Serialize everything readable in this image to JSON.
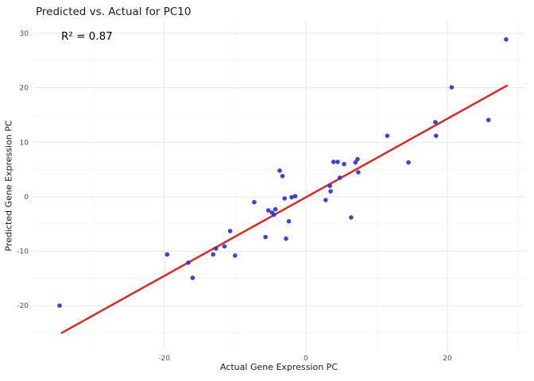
{
  "chart": {
    "title": "Predicted vs. Actual for PC10",
    "annotation": "R² = 0.87",
    "xlabel": "Actual Gene Expression PC",
    "ylabel": "Predicted Gene Expression PC"
  },
  "chart_data": {
    "type": "scatter",
    "title": "Predicted vs. Actual for PC10",
    "annotation": "R² = 0.87",
    "xlabel": "Actual Gene Expression PC",
    "ylabel": "Predicted Gene Expression PC",
    "x_ticks": [
      -20,
      0,
      20
    ],
    "y_ticks": [
      -20,
      -10,
      0,
      10,
      20,
      30
    ],
    "x_minor_ticks": [
      -30,
      -10,
      10,
      30
    ],
    "y_minor_ticks": [
      -25,
      -15,
      -5,
      5,
      15,
      25
    ],
    "xlim": [
      -38.5,
      31
    ],
    "ylim": [
      -28.3,
      32.2
    ],
    "grid": true,
    "legend": "none",
    "point_color": "#3030dd",
    "line_color": "#ec1c1c",
    "points": [
      [
        -34.8,
        -20.0
      ],
      [
        -19.6,
        -10.6
      ],
      [
        -16.6,
        -12.1
      ],
      [
        -16.0,
        -14.9
      ],
      [
        -13.1,
        -10.6
      ],
      [
        -12.7,
        -9.5
      ],
      [
        -11.5,
        -9.1
      ],
      [
        -10.7,
        -6.3
      ],
      [
        -10.0,
        -10.8
      ],
      [
        -7.3,
        -1.0
      ],
      [
        -5.7,
        -7.4
      ],
      [
        -5.3,
        -2.5
      ],
      [
        -4.8,
        -2.9
      ],
      [
        -4.5,
        -3.3
      ],
      [
        -4.3,
        -2.3
      ],
      [
        -3.7,
        4.8
      ],
      [
        -3.3,
        3.8
      ],
      [
        -3.0,
        -0.3
      ],
      [
        -2.8,
        -7.7
      ],
      [
        -2.4,
        -4.5
      ],
      [
        -2.0,
        -0.1
      ],
      [
        -1.5,
        0.1
      ],
      [
        2.8,
        -0.6
      ],
      [
        3.4,
        2.0
      ],
      [
        3.5,
        1.0
      ],
      [
        3.9,
        6.4
      ],
      [
        4.5,
        6.4
      ],
      [
        4.8,
        3.5
      ],
      [
        5.4,
        6.0
      ],
      [
        6.4,
        -3.8
      ],
      [
        7.0,
        6.3
      ],
      [
        7.3,
        6.9
      ],
      [
        7.4,
        4.5
      ],
      [
        11.5,
        11.2
      ],
      [
        14.5,
        6.3
      ],
      [
        18.3,
        13.7
      ],
      [
        18.4,
        11.2
      ],
      [
        20.6,
        20.1
      ],
      [
        25.8,
        14.1
      ],
      [
        28.3,
        28.9
      ]
    ],
    "regression_line": {
      "x1": -34.5,
      "y1": -25.0,
      "x2": 28.4,
      "y2": 20.4
    }
  }
}
